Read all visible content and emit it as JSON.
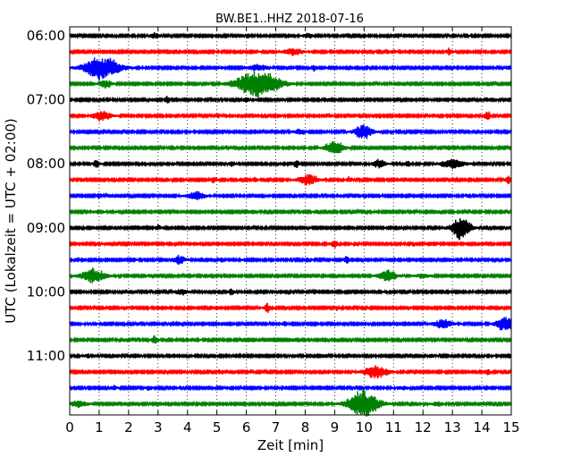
{
  "chart_data": {
    "type": "line",
    "title": "BW.BE1..HHZ 2018-07-16",
    "xlabel": "Zeit  [min]",
    "ylabel": "UTC (Lokalzeit = UTC + 02:00)",
    "xlim": [
      0,
      15
    ],
    "x_ticks": [
      "0",
      "1",
      "2",
      "3",
      "4",
      "5",
      "6",
      "7",
      "8",
      "9",
      "10",
      "11",
      "12",
      "13",
      "14",
      "15"
    ],
    "y_tick_labels": [
      "06:00",
      "07:00",
      "08:00",
      "09:00",
      "10:00",
      "11:00"
    ],
    "grid": "vertical dotted, every 1 min",
    "row_colors": [
      "#000000",
      "#ff0000",
      "#0000ff",
      "#008000"
    ],
    "rows": [
      {
        "start": "06:00",
        "events": [
          [
            2.9,
            0.6,
            0.15
          ],
          [
            8.1,
            0.4,
            0.15
          ]
        ]
      },
      {
        "start": "06:15",
        "events": [
          [
            7.6,
            0.7,
            0.3
          ],
          [
            11.0,
            0.3,
            0.1
          ],
          [
            12.9,
            0.6,
            0.1
          ]
        ]
      },
      {
        "start": "06:30",
        "events": [
          [
            1.1,
            2.0,
            0.6
          ],
          [
            6.4,
            0.6,
            0.3
          ],
          [
            8.3,
            0.5,
            0.1
          ]
        ]
      },
      {
        "start": "06:45",
        "events": [
          [
            1.2,
            0.8,
            0.2
          ],
          [
            6.4,
            2.4,
            0.7
          ]
        ]
      },
      {
        "start": "07:00",
        "events": [
          [
            3.3,
            0.6,
            0.1
          ],
          [
            6.0,
            0.5,
            0.1
          ]
        ]
      },
      {
        "start": "07:15",
        "events": [
          [
            1.1,
            0.9,
            0.3
          ],
          [
            14.2,
            0.8,
            0.1
          ]
        ]
      },
      {
        "start": "07:30",
        "events": [
          [
            7.8,
            0.5,
            0.2
          ],
          [
            10.0,
            1.3,
            0.3
          ]
        ]
      },
      {
        "start": "07:45",
        "events": [
          [
            9.0,
            1.2,
            0.3
          ]
        ]
      },
      {
        "start": "08:00",
        "events": [
          [
            0.9,
            0.7,
            0.1
          ],
          [
            5.5,
            0.5,
            0.1
          ],
          [
            7.7,
            0.6,
            0.1
          ],
          [
            10.5,
            0.8,
            0.2
          ],
          [
            11.5,
            0.5,
            0.1
          ],
          [
            13.0,
            0.8,
            0.4
          ]
        ]
      },
      {
        "start": "08:15",
        "events": [
          [
            4.9,
            0.5,
            0.1
          ],
          [
            8.1,
            1.0,
            0.3
          ],
          [
            9.5,
            0.5,
            0.1
          ],
          [
            14.9,
            0.6,
            0.1
          ]
        ]
      },
      {
        "start": "08:30",
        "events": [
          [
            4.3,
            0.7,
            0.3
          ],
          [
            1.0,
            0.4,
            0.1
          ]
        ]
      },
      {
        "start": "08:45",
        "events": [
          [
            1.0,
            0.3,
            0.2
          ]
        ]
      },
      {
        "start": "09:00",
        "events": [
          [
            3.0,
            0.4,
            0.1
          ],
          [
            13.3,
            2.2,
            0.3
          ]
        ]
      },
      {
        "start": "09:15",
        "events": [
          [
            9.0,
            0.8,
            0.1
          ]
        ]
      },
      {
        "start": "09:30",
        "events": [
          [
            3.7,
            0.8,
            0.2
          ],
          [
            9.4,
            0.6,
            0.1
          ]
        ]
      },
      {
        "start": "09:45",
        "events": [
          [
            0.8,
            1.2,
            0.4
          ],
          [
            10.8,
            1.0,
            0.3
          ],
          [
            12.0,
            0.4,
            0.2
          ]
        ]
      },
      {
        "start": "10:00",
        "events": [
          [
            3.8,
            0.5,
            0.2
          ],
          [
            5.5,
            0.6,
            0.1
          ]
        ]
      },
      {
        "start": "10:15",
        "events": [
          [
            6.7,
            0.8,
            0.1
          ],
          [
            9.1,
            0.4,
            0.1
          ]
        ]
      },
      {
        "start": "10:30",
        "events": [
          [
            12.7,
            0.8,
            0.3
          ],
          [
            14.8,
            1.3,
            0.3
          ],
          [
            7.3,
            0.4,
            0.1
          ]
        ]
      },
      {
        "start": "10:45",
        "events": [
          [
            2.9,
            0.8,
            0.1
          ]
        ]
      },
      {
        "start": "11:00",
        "events": [
          [
            12.3,
            0.4,
            0.1
          ],
          [
            0.6,
            0.3,
            0.1
          ]
        ]
      },
      {
        "start": "11:15",
        "events": [
          [
            10.4,
            1.1,
            0.4
          ],
          [
            14.2,
            0.5,
            0.1
          ]
        ]
      },
      {
        "start": "11:30",
        "events": [
          [
            1.5,
            0.4,
            0.1
          ],
          [
            2.7,
            0.4,
            0.1
          ],
          [
            11.3,
            0.3,
            0.2
          ]
        ]
      },
      {
        "start": "11:45",
        "events": [
          [
            0.3,
            0.5,
            0.3
          ],
          [
            10.0,
            2.4,
            0.5
          ],
          [
            12.5,
            0.4,
            0.2
          ]
        ]
      }
    ]
  }
}
